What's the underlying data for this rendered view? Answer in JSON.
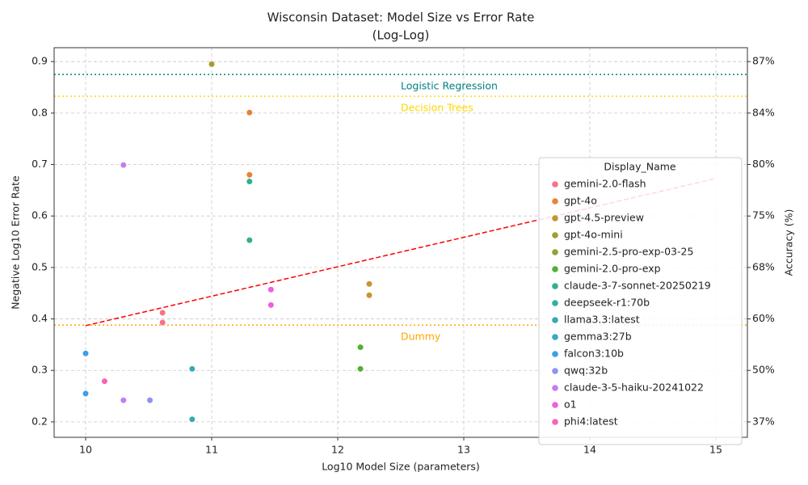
{
  "chart_data": {
    "type": "scatter",
    "title": "Wisconsin Dataset: Model Size vs Error Rate",
    "subtitle": "(Log-Log)",
    "x_label": "Log10 Model Size (parameters)",
    "y_label": "Negative Log10 Error Rate",
    "y2_label": "Accuracy (%)",
    "y2scale": "negative-log10-error",
    "legend_title": "Display_Name",
    "legend": "right",
    "grid": true,
    "xlim": [
      9.75,
      15.25
    ],
    "xticks": [
      10,
      11,
      12,
      13,
      14,
      15
    ],
    "ylim": [
      0.17,
      0.927
    ],
    "yticks": [
      0.2,
      0.3,
      0.4,
      0.5,
      0.6,
      0.7,
      0.8,
      0.9
    ],
    "y2lim": [
      32.39,
      88.17
    ],
    "y2ticks": [
      {
        "value": 36.9,
        "label": "37%"
      },
      {
        "value": 49.88,
        "label": "50%"
      },
      {
        "value": 60.19,
        "label": "60%"
      },
      {
        "value": 68.38,
        "label": "68%"
      },
      {
        "value": 74.88,
        "label": "75%"
      },
      {
        "value": 80.05,
        "label": "80%"
      },
      {
        "value": 84.15,
        "label": "84%"
      },
      {
        "value": 87.41,
        "label": "87%"
      }
    ],
    "reference_lines": [
      {
        "label": "Logistic Regression",
        "y": 0.875,
        "color": "#008080"
      },
      {
        "label": "Decision Trees",
        "y": 0.8325,
        "color": "#ffd700"
      },
      {
        "label": "Dummy",
        "y": 0.388,
        "color": "#ffa500"
      }
    ],
    "trend": {
      "color": "#ff0000",
      "x": [
        10,
        15
      ],
      "y": [
        0.387,
        0.673
      ]
    },
    "series": [
      {
        "name": "gemini-2.0-flash",
        "color": "#f77189",
        "x": [
          10.61,
          10.61
        ],
        "y": [
          0.412,
          0.393
        ]
      },
      {
        "name": "gpt-4o",
        "color": "#e8823a",
        "x": [
          11.3,
          11.3
        ],
        "y": [
          0.801,
          0.68
        ]
      },
      {
        "name": "gpt-4.5-preview",
        "color": "#c69432",
        "x": [
          12.25,
          12.25
        ],
        "y": [
          0.468,
          0.446
        ]
      },
      {
        "name": "gpt-4o-mini",
        "color": "#a69c31",
        "x": [
          11.0
        ],
        "y": [
          0.895
        ]
      },
      {
        "name": "gemini-2.5-pro-exp-03-25",
        "color": "#8ca531",
        "x": [],
        "y": []
      },
      {
        "name": "gemini-2.0-pro-exp",
        "color": "#50b131",
        "x": [
          12.18,
          12.18
        ],
        "y": [
          0.345,
          0.303
        ]
      },
      {
        "name": "claude-3-7-sonnet-20250219",
        "color": "#34ae8d",
        "x": [
          11.3,
          11.3
        ],
        "y": [
          0.667,
          0.553
        ]
      },
      {
        "name": "deepseek-r1:70b",
        "color": "#36ada4",
        "x": [],
        "y": []
      },
      {
        "name": "llama3.3:latest",
        "color": "#38aab3",
        "x": [
          10.845,
          10.845
        ],
        "y": [
          0.303,
          0.205
        ]
      },
      {
        "name": "gemma3:27b",
        "color": "#3ba6c6",
        "x": [],
        "y": []
      },
      {
        "name": "falcon3:10b",
        "color": "#3d9fe8",
        "x": [
          10.0,
          10.0
        ],
        "y": [
          0.333,
          0.255
        ]
      },
      {
        "name": "qwq:32b",
        "color": "#8e92f4",
        "x": [
          10.51
        ],
        "y": [
          0.242
        ]
      },
      {
        "name": "claude-3-5-haiku-20241022",
        "color": "#c27ef4",
        "x": [
          10.3,
          10.3
        ],
        "y": [
          0.699,
          0.242
        ]
      },
      {
        "name": "o1",
        "color": "#ee5fe0",
        "x": [
          11.47,
          11.47
        ],
        "y": [
          0.457,
          0.427
        ]
      },
      {
        "name": "phi4:latest",
        "color": "#f565b5",
        "x": [
          10.15
        ],
        "y": [
          0.279
        ]
      }
    ]
  }
}
